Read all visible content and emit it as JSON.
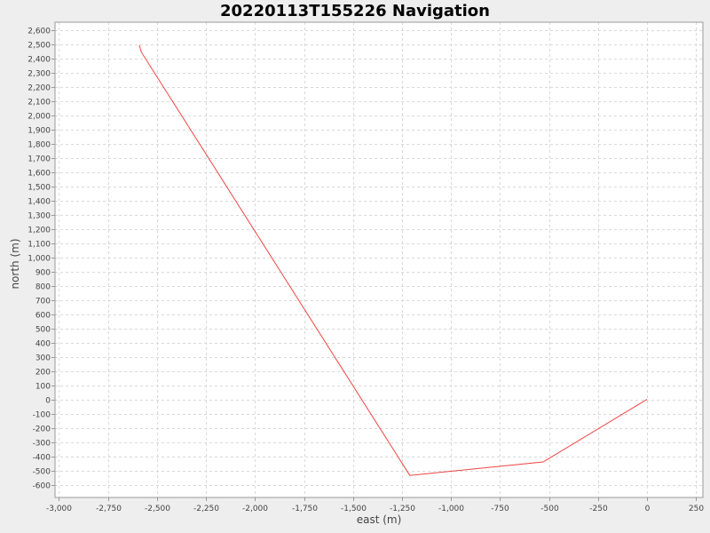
{
  "chart_data": {
    "type": "line",
    "title": "20220113T155226 Navigation",
    "xlabel": "east (m)",
    "ylabel": "north (m)",
    "xlim": [
      -3020,
      285
    ],
    "ylim": [
      -690,
      2655
    ],
    "x_ticks": [
      -3000,
      -2750,
      -2500,
      -2250,
      -2000,
      -1750,
      -1500,
      -1250,
      -1000,
      -750,
      -500,
      -250,
      0,
      250
    ],
    "x_tick_labels": [
      "-3,000",
      "-2,750",
      "-2,500",
      "-2,250",
      "-2,000",
      "-1,750",
      "-1,500",
      "-1,250",
      "-1,000",
      "-750",
      "-500",
      "-250",
      "0",
      "250"
    ],
    "y_ticks": [
      -600,
      -500,
      -400,
      -300,
      -200,
      -100,
      0,
      100,
      200,
      300,
      400,
      500,
      600,
      700,
      800,
      900,
      1000,
      1100,
      1200,
      1300,
      1400,
      1500,
      1600,
      1700,
      1800,
      1900,
      2000,
      2100,
      2200,
      2300,
      2400,
      2500,
      2600
    ],
    "y_tick_labels": [
      "-600",
      "-500",
      "-400",
      "-300",
      "-200",
      "-100",
      "0",
      "100",
      "200",
      "300",
      "400",
      "500",
      "600",
      "700",
      "800",
      "900",
      "1,000",
      "1,100",
      "1,200",
      "1,300",
      "1,400",
      "1,500",
      "1,600",
      "1,700",
      "1,800",
      "1,900",
      "2,000",
      "2,100",
      "2,200",
      "2,300",
      "2,400",
      "2,500",
      "2,600"
    ],
    "grid": true,
    "series": [
      {
        "color": "#ee4444",
        "x": [
          0,
          -530,
          -1210,
          -2580,
          -2590
        ],
        "y": [
          0,
          -440,
          -535,
          2445,
          2495
        ]
      }
    ],
    "colors": {
      "background": "#eeeeee",
      "plot_background": "#ffffff",
      "grid": "#d9d9d9",
      "frame": "#999999",
      "line": "#ee4444"
    }
  }
}
